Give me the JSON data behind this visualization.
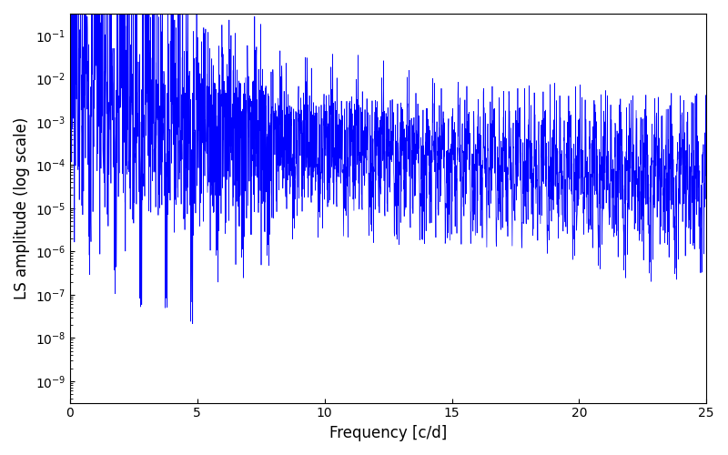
{
  "xlabel": "Frequency [c/d]",
  "ylabel": "LS amplitude (log scale)",
  "line_color": "#0000ff",
  "xlim": [
    0,
    25
  ],
  "ylim_log": [
    -9.5,
    -0.5
  ],
  "figsize": [
    8.0,
    5.0
  ],
  "dpi": 100,
  "seed": 42,
  "n_points": 3000,
  "background_color": "#ffffff"
}
